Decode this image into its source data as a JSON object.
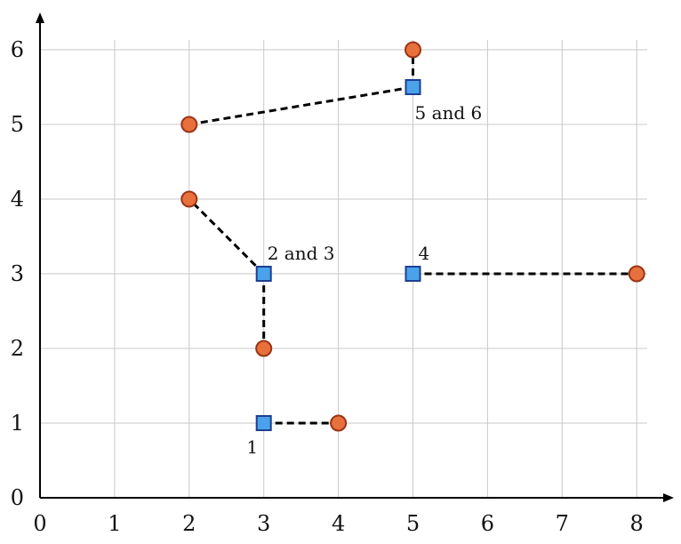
{
  "chart_data": {
    "type": "scatter",
    "xlim": [
      0,
      8
    ],
    "ylim": [
      0,
      6
    ],
    "x_ticks": [
      0,
      1,
      2,
      3,
      4,
      5,
      6,
      7,
      8
    ],
    "y_ticks": [
      0,
      1,
      2,
      3,
      4,
      5,
      6
    ],
    "grid": true,
    "circles": [
      {
        "x": 4,
        "y": 1
      },
      {
        "x": 3,
        "y": 2
      },
      {
        "x": 2,
        "y": 4
      },
      {
        "x": 8,
        "y": 3
      },
      {
        "x": 2,
        "y": 5
      },
      {
        "x": 5,
        "y": 6
      }
    ],
    "squares": [
      {
        "x": 3,
        "y": 1,
        "label": "1"
      },
      {
        "x": 3,
        "y": 3,
        "label": "2 and 3"
      },
      {
        "x": 5,
        "y": 3,
        "label": "4"
      },
      {
        "x": 5,
        "y": 5.5,
        "label": "5 and 6"
      }
    ],
    "links": [
      {
        "from": [
          3,
          1
        ],
        "to": [
          4,
          1
        ]
      },
      {
        "from": [
          3,
          3
        ],
        "to": [
          3,
          2
        ]
      },
      {
        "from": [
          3,
          3
        ],
        "to": [
          2,
          4
        ]
      },
      {
        "from": [
          5,
          3
        ],
        "to": [
          8,
          3
        ]
      },
      {
        "from": [
          5,
          5.5
        ],
        "to": [
          2,
          5
        ]
      },
      {
        "from": [
          5,
          5.5
        ],
        "to": [
          5,
          6
        ]
      }
    ]
  }
}
